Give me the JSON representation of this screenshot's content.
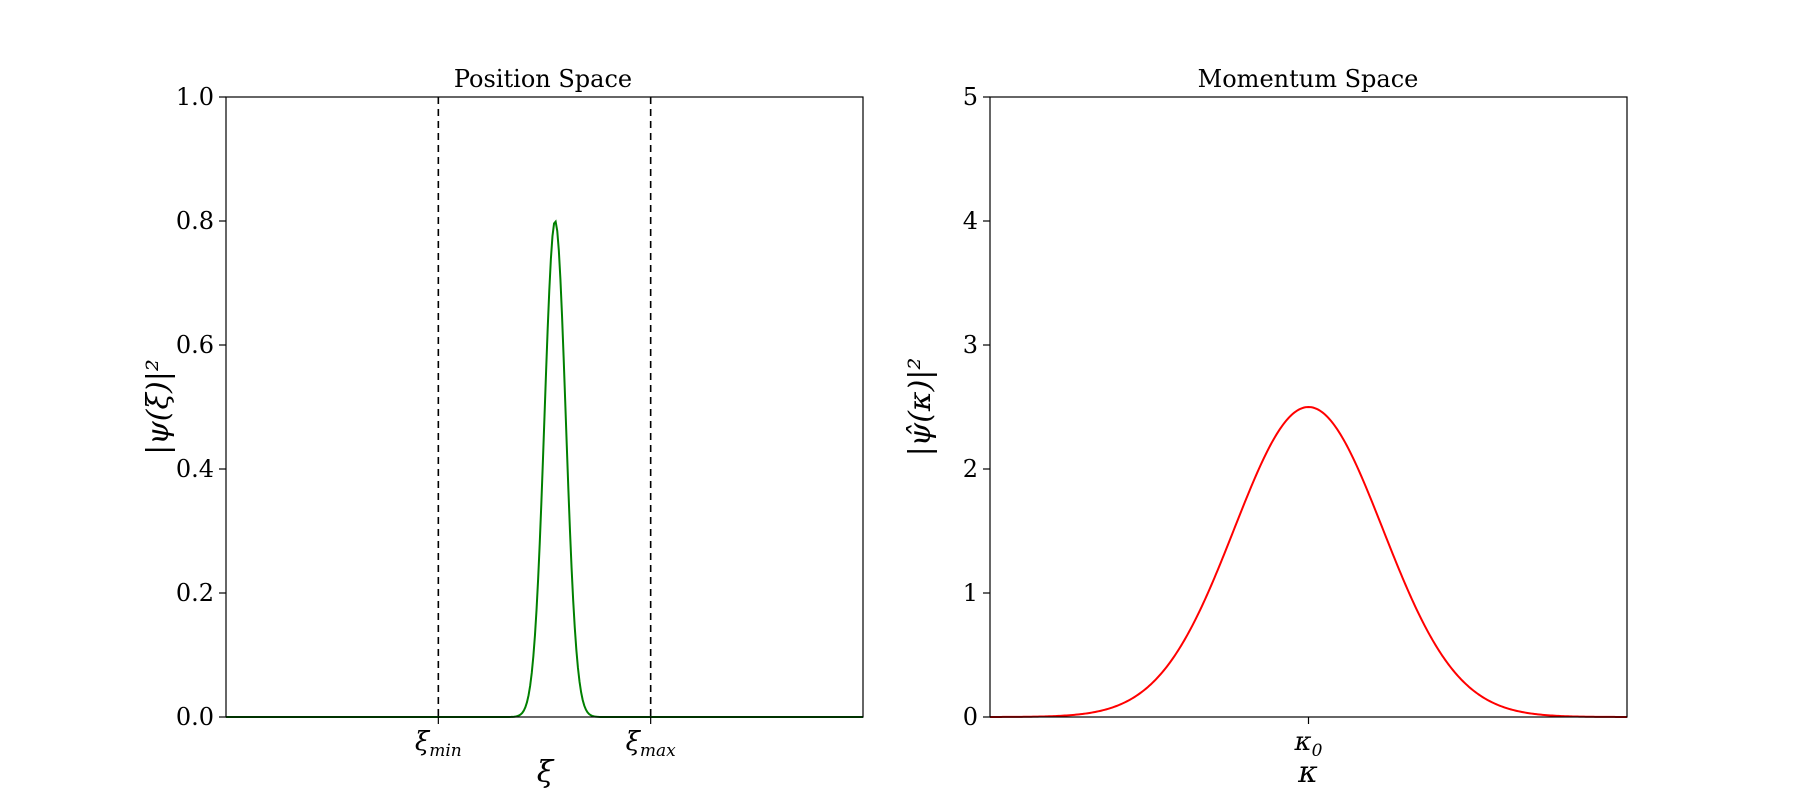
{
  "chart_data": [
    {
      "type": "line",
      "title": "Position Space",
      "xlabel": "ξ",
      "ylabel": "|ψ(ξ)|²",
      "ylim": [
        0,
        1.0
      ],
      "yticks": [
        "0.0",
        "0.2",
        "0.4",
        "0.6",
        "0.8",
        "1.0"
      ],
      "yticks_values": [
        0,
        0.2,
        0.4,
        0.6,
        0.8,
        1.0
      ],
      "xlim": [
        -1,
        2
      ],
      "xticks": [
        {
          "value": 0,
          "base": "ξ",
          "sub": "min"
        },
        {
          "value": 1,
          "base": "ξ",
          "sub": "max"
        }
      ],
      "vlines": [
        0,
        1
      ],
      "hline": 0,
      "grid": false,
      "series": [
        {
          "color": "#008000",
          "shape": "gaussian",
          "center": 0.55,
          "peak": 0.8,
          "sigma": 0.05
        }
      ]
    },
    {
      "type": "line",
      "title": "Momentum Space",
      "xlabel": "κ",
      "ylabel": "|ψ̂(κ)|²",
      "ylim": [
        0,
        5
      ],
      "yticks": [
        "0",
        "1",
        "2",
        "3",
        "4",
        "5"
      ],
      "yticks_values": [
        0,
        1,
        2,
        3,
        4,
        5
      ],
      "xlim": [
        -3,
        3
      ],
      "xticks": [
        {
          "value": 0,
          "base": "κ",
          "sub": "0"
        }
      ],
      "hline": 0,
      "grid": false,
      "series": [
        {
          "color": "#ff0000",
          "shape": "gaussian",
          "center": 0,
          "peak": 2.5,
          "sigma": 0.7
        }
      ]
    }
  ]
}
